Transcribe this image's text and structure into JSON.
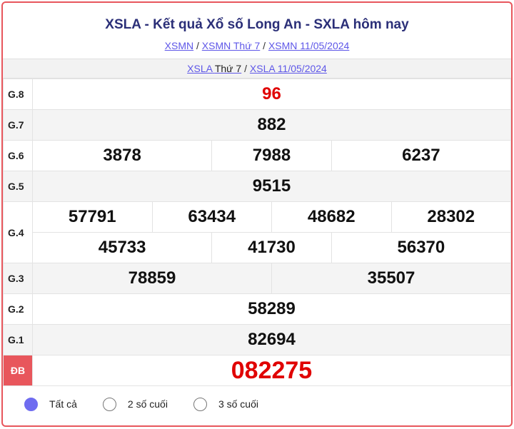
{
  "title": "XSLA - Kết quả Xổ số Long An - SXLA hôm nay",
  "breadcrumb": [
    {
      "label": "XSMN"
    },
    {
      "label": "XSMN Thứ 7"
    },
    {
      "label": "XSMN 11/05/2024"
    }
  ],
  "sub": {
    "link1": "XSLA",
    "link1_suffix": "Thứ 7",
    "link2": "XSLA 11/05/2024"
  },
  "separator": "/",
  "prizes": {
    "g8": {
      "label": "G.8",
      "values": [
        "96"
      ]
    },
    "g7": {
      "label": "G.7",
      "values": [
        "882"
      ]
    },
    "g6": {
      "label": "G.6",
      "values": [
        "3878",
        "7988",
        "6237"
      ]
    },
    "g5": {
      "label": "G.5",
      "values": [
        "9515"
      ]
    },
    "g4": {
      "label": "G.4",
      "values": [
        "57791",
        "63434",
        "48682",
        "28302",
        "45733",
        "41730",
        "56370"
      ]
    },
    "g3": {
      "label": "G.3",
      "values": [
        "78859",
        "35507"
      ]
    },
    "g2": {
      "label": "G.2",
      "values": [
        "58289"
      ]
    },
    "g1": {
      "label": "G.1",
      "values": [
        "82694"
      ]
    },
    "db": {
      "label": "ĐB",
      "values": [
        "082275"
      ]
    }
  },
  "filters": [
    {
      "label": "Tất cả",
      "selected": true
    },
    {
      "label": "2 số cuối",
      "selected": false
    },
    {
      "label": "3 số cuối",
      "selected": false
    }
  ],
  "colors": {
    "accent": "#e8565c",
    "special": "#e00000",
    "link": "#5e57e8",
    "title": "#2b2f78"
  }
}
